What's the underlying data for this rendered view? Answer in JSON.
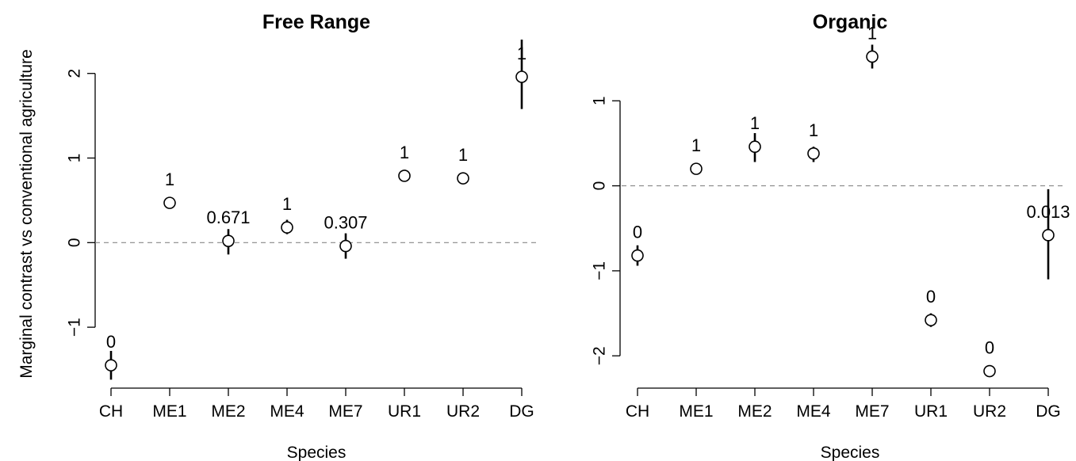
{
  "figure": {
    "y_axis_label": "Marginal contrast vs conventional agriculture"
  },
  "chart_data": [
    {
      "type": "scatter",
      "title": "Free Range",
      "xlabel": "Species",
      "ylabel": "Marginal contrast vs conventional agriculture",
      "categories": [
        "CH",
        "ME1",
        "ME2",
        "ME4",
        "ME7",
        "UR1",
        "UR2",
        "DG"
      ],
      "yticks": [
        -1,
        0,
        1,
        2
      ],
      "ylim": [
        -1.72,
        2.4
      ],
      "reference_line": 0,
      "grid": false,
      "series": [
        {
          "values": [
            -1.45,
            0.47,
            0.02,
            0.18,
            -0.04,
            0.79,
            0.76,
            1.96
          ],
          "lower": [
            -1.62,
            0.4,
            -0.14,
            0.1,
            -0.19,
            0.72,
            0.7,
            1.58
          ],
          "upper": [
            -1.28,
            0.54,
            0.16,
            0.27,
            0.11,
            0.86,
            0.82,
            2.4
          ],
          "labels": [
            "0",
            "1",
            "0.671",
            "1",
            "0.307",
            "1",
            "1",
            "1"
          ]
        }
      ]
    },
    {
      "type": "scatter",
      "title": "Organic",
      "xlabel": "Species",
      "ylabel": "",
      "categories": [
        "CH",
        "ME1",
        "ME2",
        "ME4",
        "ME7",
        "UR1",
        "UR2",
        "DG"
      ],
      "yticks": [
        -2,
        -1,
        0,
        1
      ],
      "ylim": [
        -2.38,
        1.72
      ],
      "reference_line": 0,
      "grid": false,
      "series": [
        {
          "values": [
            -0.82,
            0.2,
            0.46,
            0.38,
            1.52,
            -1.58,
            -2.18,
            -0.58
          ],
          "lower": [
            -0.94,
            0.14,
            0.28,
            0.28,
            1.38,
            -1.66,
            -2.24,
            -1.1
          ],
          "upper": [
            -0.7,
            0.26,
            0.62,
            0.46,
            1.66,
            -1.5,
            -2.12,
            -0.04
          ],
          "labels": [
            "0",
            "1",
            "1",
            "1",
            "1",
            "0",
            "0",
            "0.013"
          ]
        }
      ]
    }
  ]
}
